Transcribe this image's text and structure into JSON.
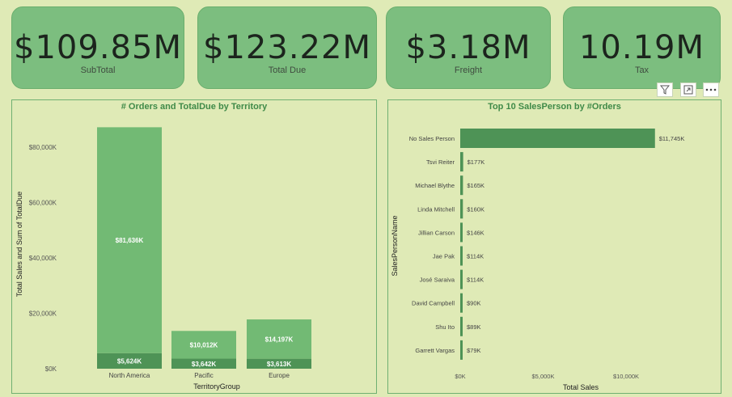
{
  "kpis": [
    {
      "value": "$109.85M",
      "label": "SubTotal"
    },
    {
      "value": "$123.22M",
      "label": "Total Due"
    },
    {
      "value": "$3.18M",
      "label": "Freight"
    },
    {
      "value": "10.19M",
      "label": "Tax"
    }
  ],
  "header_icons": [
    "filter-icon",
    "focus-mode-icon",
    "more-options-icon"
  ],
  "chart_data": [
    {
      "type": "bar",
      "stacked": true,
      "title": "# Orders and TotalDue by Territory",
      "xlabel": "TerritoryGroup",
      "ylabel": "Total Sales and Sum of TotalDue",
      "categories": [
        "North America",
        "Pacific",
        "Europe"
      ],
      "series": [
        {
          "name": "Total Sales",
          "values": [
            5624,
            3642,
            3613
          ],
          "labels": [
            "$5,624K",
            "$3,642K",
            "$3,613K"
          ],
          "color": "#4e9356"
        },
        {
          "name": "Sum of TotalDue",
          "values": [
            81636,
            10012,
            14197
          ],
          "labels": [
            "$81,636K",
            "$10,012K",
            "$14,197K"
          ],
          "color": "#72ba74"
        }
      ],
      "ylim": [
        0,
        90000
      ],
      "yticks": [
        0,
        20000,
        40000,
        60000,
        80000
      ],
      "ytick_labels": [
        "$0K",
        "$20,000K",
        "$40,000K",
        "$60,000K",
        "$80,000K"
      ]
    },
    {
      "type": "bar",
      "orientation": "horizontal",
      "title": "Top 10 SalesPerson by #Orders",
      "xlabel": "Total Sales",
      "ylabel": "SalesPersonName",
      "categories": [
        "No Sales Person",
        "Tsvi Reiter",
        "Michael Blythe",
        "Linda Mitchell",
        "Jillian Carson",
        "Jae Pak",
        "José Saraiva",
        "David Campbell",
        "Shu Ito",
        "Garrett Vargas"
      ],
      "values": [
        11745,
        177,
        165,
        160,
        146,
        114,
        114,
        90,
        89,
        79
      ],
      "labels": [
        "$11,745K",
        "$177K",
        "$165K",
        "$160K",
        "$146K",
        "$114K",
        "$114K",
        "$90K",
        "$89K",
        "$79K"
      ],
      "color": "#4e9356",
      "xlim": [
        0,
        12000
      ],
      "xticks": [
        0,
        5000,
        10000
      ],
      "xtick_labels": [
        "$0K",
        "$5,000K",
        "$10,000K"
      ]
    }
  ]
}
